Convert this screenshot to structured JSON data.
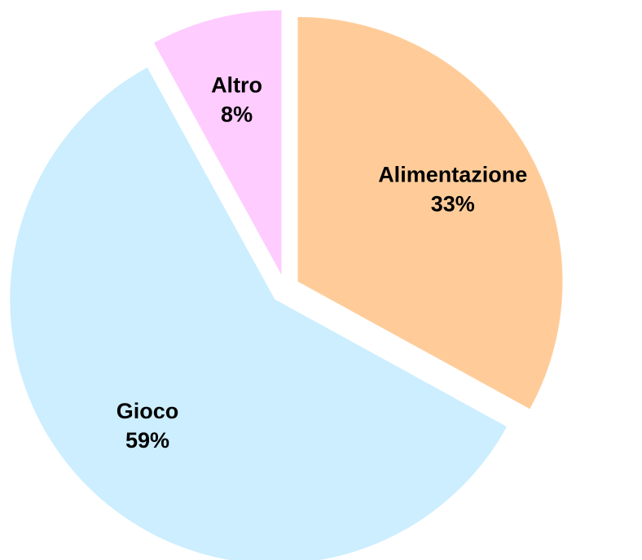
{
  "chart_data": {
    "type": "pie",
    "categories": [
      "Alimentazione",
      "Gioco",
      "Altro"
    ],
    "values": [
      33,
      59,
      8
    ],
    "value_labels": [
      "33%",
      "59%",
      "8%"
    ],
    "colors": [
      "#ffcc99",
      "#cceeff",
      "#ffccff"
    ]
  }
}
